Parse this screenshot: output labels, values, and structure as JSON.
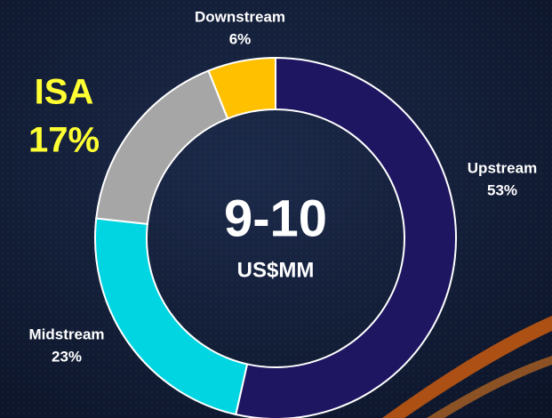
{
  "chart_data": {
    "type": "donut",
    "categories": [
      "Upstream",
      "Midstream",
      "ISA",
      "Downstream"
    ],
    "values": [
      53,
      23,
      17,
      6
    ],
    "value_labels": [
      "53%",
      "23%",
      "17%",
      "6%"
    ],
    "colors": [
      "#1f1662",
      "#00d5e1",
      "#a6a6a6",
      "#ffc000"
    ],
    "center_text": "9-10",
    "center_subtext": "US$MM"
  }
}
